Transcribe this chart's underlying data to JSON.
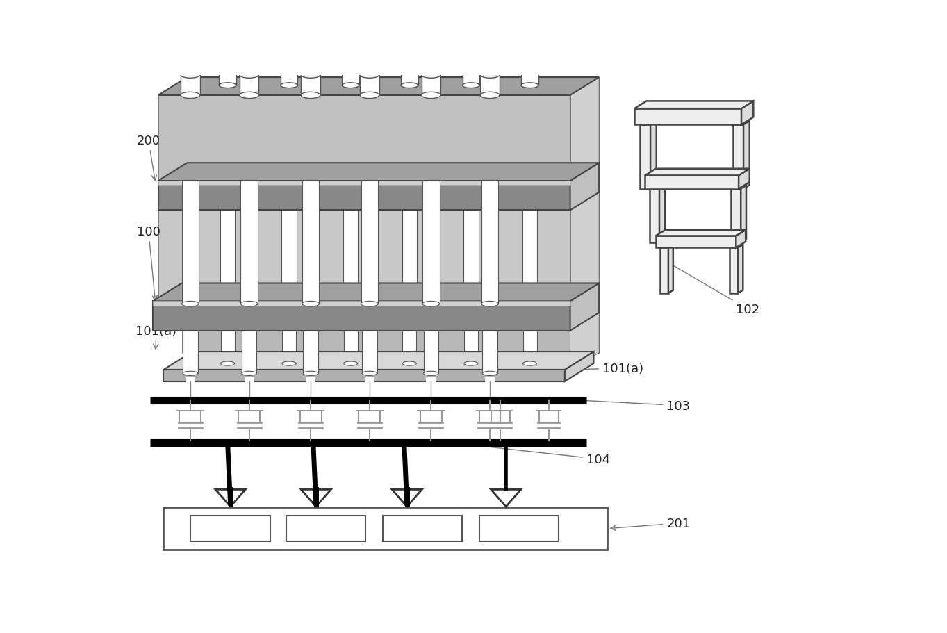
{
  "bg": "#ffffff",
  "ec": "#333333",
  "gray_top_face": "#a0a0a0",
  "gray_front_face": "#888888",
  "gray_side_face": "#c0c0c0",
  "gray_body": "#b8b8b8",
  "gray_light": "#d0d0d0",
  "gray_plate_top": "#d8d8d8",
  "gray_plate_front": "#b0b0b0",
  "white": "#ffffff",
  "black": "#000000",
  "sym_gray": "#999999",
  "table_fc": "#f0f0f0",
  "table_ec": "#444444"
}
